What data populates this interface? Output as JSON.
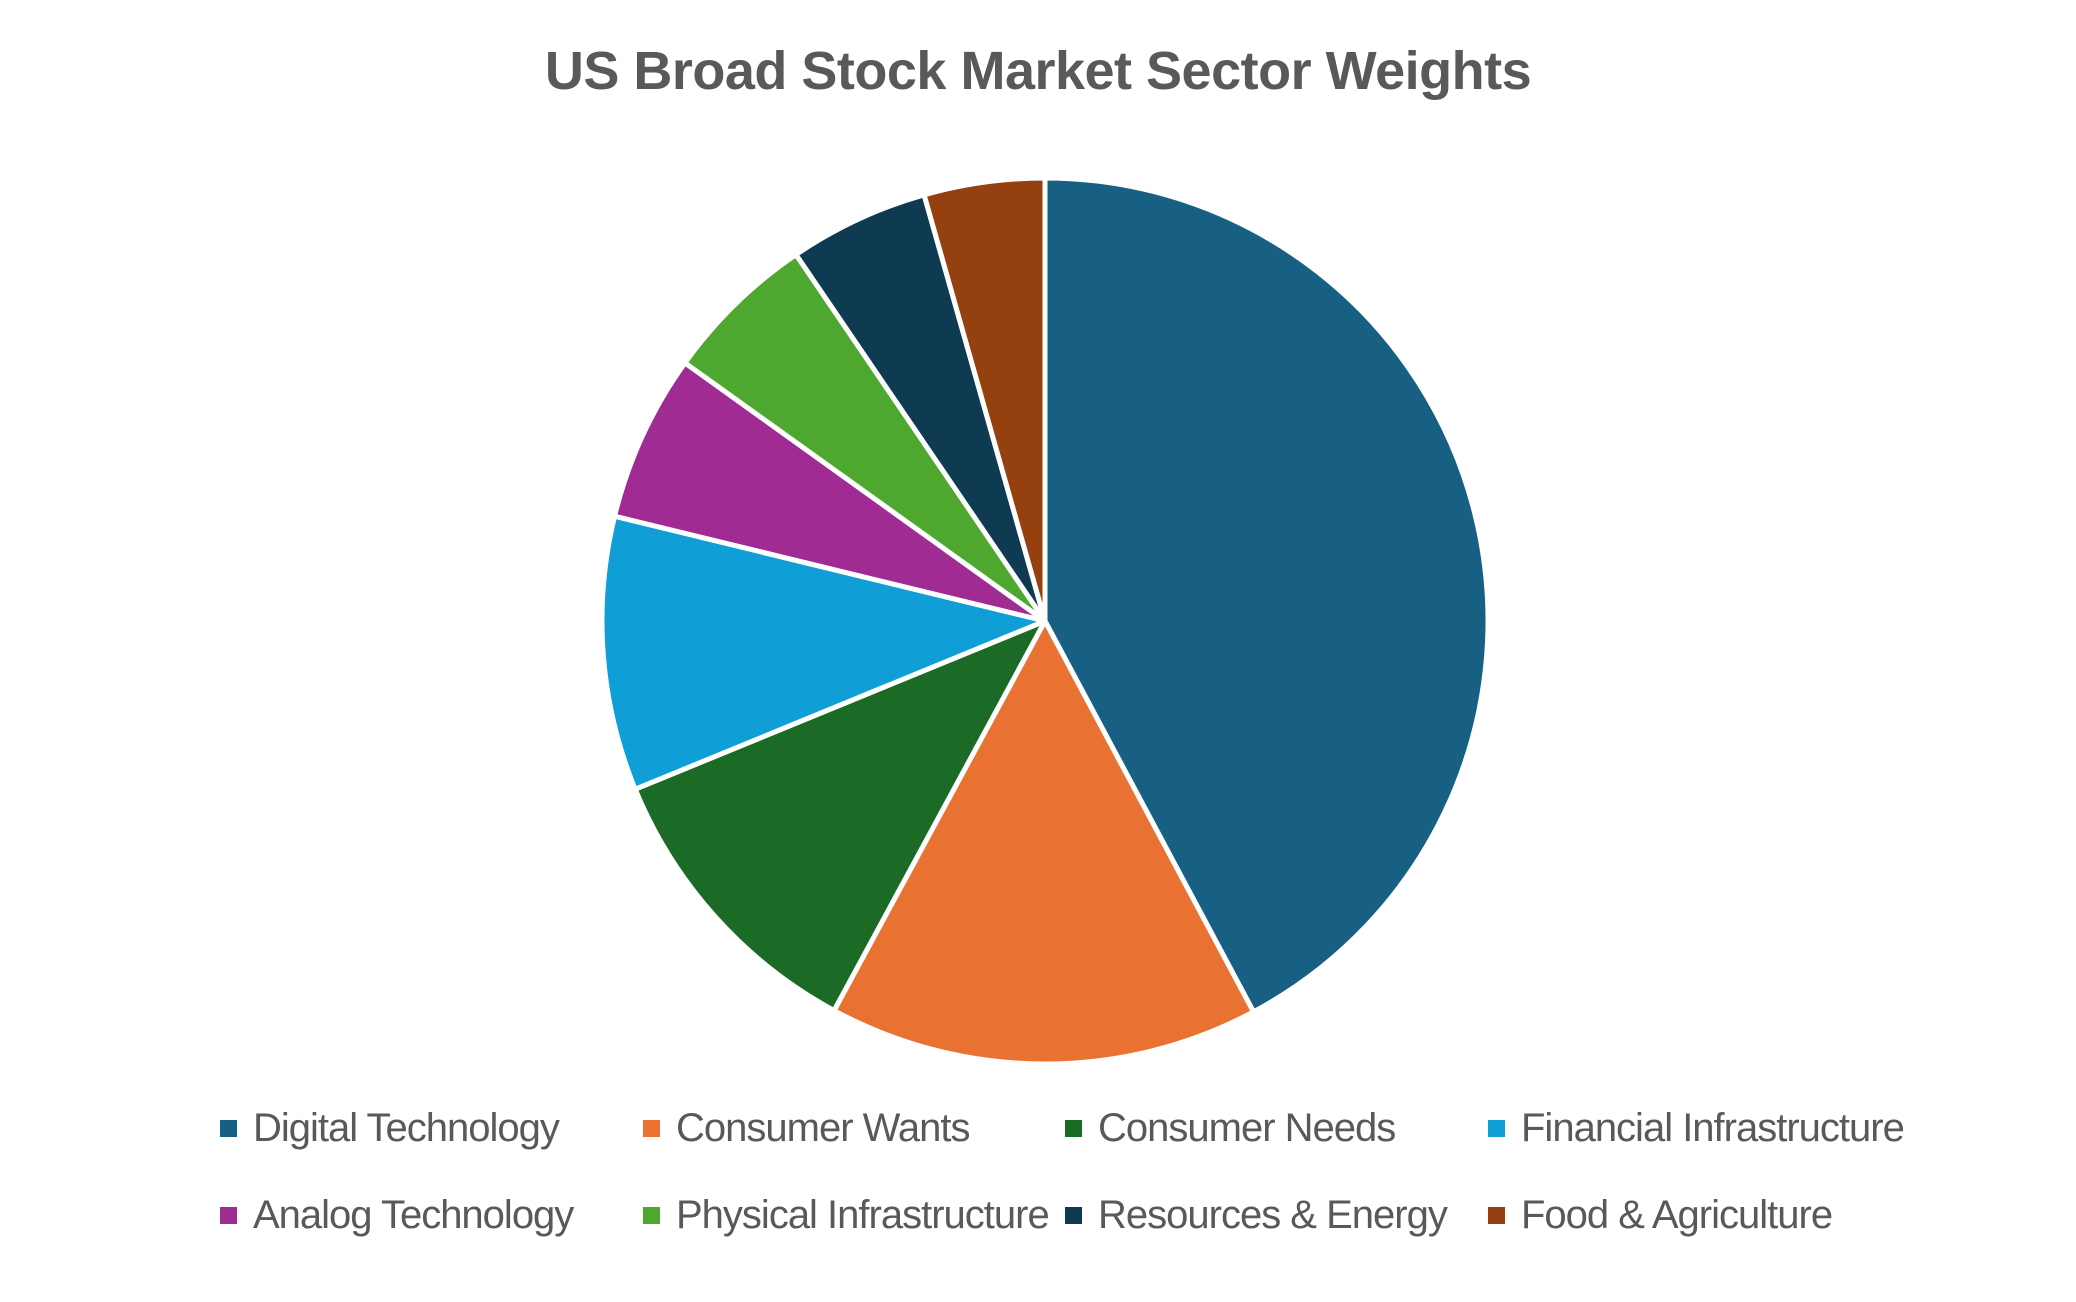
{
  "chart_data": {
    "type": "pie",
    "title": "US Broad Stock Market Sector Weights",
    "start_angle_deg": 0,
    "direction": "clockwise",
    "legend_position": "bottom",
    "slices": [
      {
        "label": "Digital Technology",
        "value": 42.2,
        "color": "#175F83"
      },
      {
        "label": "Consumer Wants",
        "value": 15.7,
        "color": "#E97132"
      },
      {
        "label": "Consumer Needs",
        "value": 10.9,
        "color": "#1B6B27"
      },
      {
        "label": "Financial Infrastructure",
        "value": 10.0,
        "color": "#0F9ED5"
      },
      {
        "label": "Analog Technology",
        "value": 6.1,
        "color": "#A02B93"
      },
      {
        "label": "Physical Infrastructure",
        "value": 5.6,
        "color": "#4EA72E"
      },
      {
        "label": "Resources & Energy",
        "value": 5.1,
        "color": "#0E3A52"
      },
      {
        "label": "Food & Agriculture",
        "value": 4.4,
        "color": "#95400F"
      }
    ]
  }
}
